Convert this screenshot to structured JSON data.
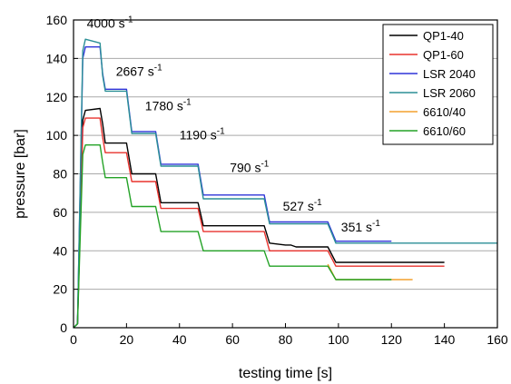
{
  "chart_data": {
    "type": "line",
    "title": "",
    "xlabel": "testing time [s]",
    "ylabel": "pressure [bar]",
    "xlim": [
      0,
      160
    ],
    "ylim": [
      0,
      160
    ],
    "xticks": [
      "0",
      "20",
      "40",
      "60",
      "80",
      "100",
      "120",
      "140",
      "160"
    ],
    "yticks": [
      "0",
      "20",
      "40",
      "60",
      "80",
      "100",
      "120",
      "140",
      "160"
    ],
    "grid": "horizontal",
    "legend_position": "top-right",
    "annotations": [
      {
        "base": "4000 s",
        "sup": "-1",
        "x": 5,
        "y": 156
      },
      {
        "base": "2667 s",
        "sup": "-1",
        "x": 16,
        "y": 131
      },
      {
        "base": "1780 s",
        "sup": "-1",
        "x": 27,
        "y": 113
      },
      {
        "base": "1190 s",
        "sup": "-1",
        "x": 40,
        "y": 98
      },
      {
        "base": "790 s",
        "sup": "-1",
        "x": 59,
        "y": 81
      },
      {
        "base": "527 s",
        "sup": "-1",
        "x": 79,
        "y": 61
      },
      {
        "base": "351 s",
        "sup": "-1",
        "x": 101,
        "y": 50
      }
    ],
    "series": [
      {
        "name": "QP1-40",
        "color": "#000000",
        "x": [
          0,
          1.5,
          3.5,
          4.5,
          10,
          11,
          12,
          20,
          22,
          31,
          33,
          47,
          49,
          72,
          74,
          80,
          82,
          84,
          96,
          99,
          140
        ],
        "y": [
          0,
          2,
          108,
          113,
          114,
          106,
          96,
          96,
          80,
          80,
          65,
          65,
          53,
          53,
          44,
          43,
          43,
          42,
          42,
          34,
          34
        ]
      },
      {
        "name": "QP1-60",
        "color": "#e8322d",
        "x": [
          0,
          1.5,
          3.5,
          4.5,
          10,
          11,
          12,
          20,
          22,
          31,
          33,
          47,
          49,
          72,
          74,
          96,
          99,
          140
        ],
        "y": [
          0,
          2,
          104,
          109,
          109,
          99,
          91,
          91,
          76,
          76,
          62,
          62,
          50,
          50,
          40,
          40,
          32,
          32
        ]
      },
      {
        "name": "LSR 2040",
        "color": "#2f34d8",
        "x": [
          0,
          1.5,
          3.5,
          4.5,
          10,
          11,
          12,
          20,
          22,
          31,
          33,
          47,
          49,
          72,
          74,
          96,
          99,
          120
        ],
        "y": [
          0,
          2,
          140,
          146,
          146,
          132,
          124,
          124,
          102,
          102,
          85,
          85,
          69,
          69,
          55,
          55,
          45,
          45
        ]
      },
      {
        "name": "LSR 2060",
        "color": "#2b8f96",
        "x": [
          0,
          1.5,
          3.5,
          4.5,
          10,
          11,
          12,
          20,
          22,
          31,
          33,
          47,
          49,
          72,
          74,
          96,
          99,
          160
        ],
        "y": [
          0,
          2,
          144,
          150,
          148,
          131,
          123,
          123,
          101,
          101,
          84,
          84,
          67,
          67,
          54,
          54,
          44,
          44
        ]
      },
      {
        "name": "6610/40",
        "color": "#f4a12e",
        "x": [
          96,
          99,
          128
        ],
        "y": [
          33,
          25,
          25
        ]
      },
      {
        "name": "6610/60",
        "color": "#23a226",
        "x": [
          0,
          1.5,
          3.5,
          4.5,
          10,
          11,
          12,
          20,
          22,
          31,
          33,
          47,
          49,
          72,
          74,
          96,
          99,
          120
        ],
        "y": [
          0,
          2,
          90,
          95,
          95,
          86,
          78,
          78,
          63,
          63,
          50,
          50,
          40,
          40,
          32,
          32,
          25,
          25
        ]
      }
    ]
  }
}
